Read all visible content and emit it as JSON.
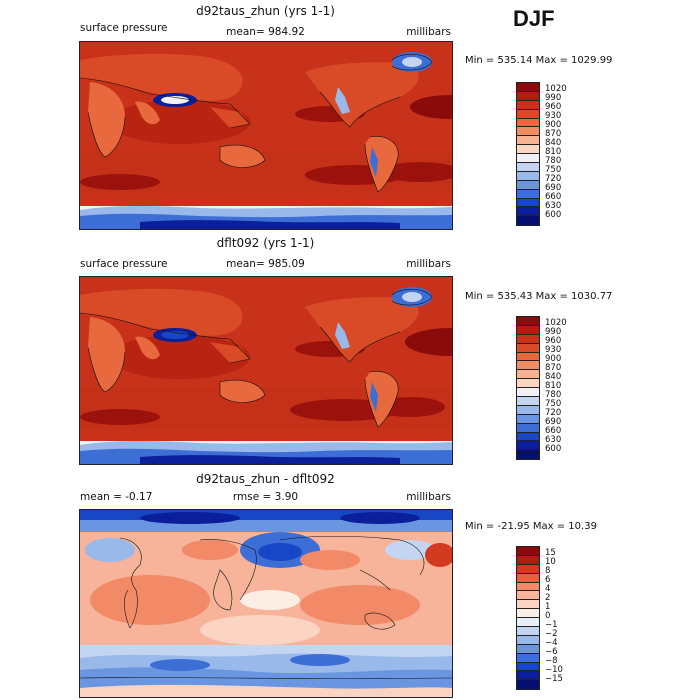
{
  "season": "DJF",
  "panels": [
    {
      "title": "d92taus_zhun (yrs 1-1)",
      "variable": "surface pressure",
      "stat": "mean=  984.92",
      "units": "millibars",
      "minmax": "Min = 535.14 Max = 1029.99",
      "colorbar_labels": [
        "1020",
        "990",
        "960",
        "930",
        "900",
        "870",
        "840",
        "810",
        "780",
        "750",
        "720",
        "690",
        "660",
        "630",
        "600"
      ]
    },
    {
      "title": "dflt092 (yrs 1-1)",
      "variable": "surface pressure",
      "stat": "mean=  985.09",
      "units": "millibars",
      "minmax": "Min = 535.43 Max = 1030.77",
      "colorbar_labels": [
        "1020",
        "990",
        "960",
        "930",
        "900",
        "870",
        "840",
        "810",
        "780",
        "750",
        "720",
        "690",
        "660",
        "630",
        "600"
      ]
    },
    {
      "title": "d92taus_zhun - dflt092",
      "variable": "mean =   -0.17",
      "stat": "rmse =    3.90",
      "units": "millibars",
      "minmax": "Min = -21.95 Max =  10.39",
      "colorbar_labels": [
        "15",
        "10",
        "8",
        "6",
        "4",
        "2",
        "1",
        "0",
        "−1",
        "−2",
        "−4",
        "−6",
        "−8",
        "−10",
        "−15"
      ]
    }
  ],
  "colors": {
    "pressure_scale": [
      "#8b0a0a",
      "#b01c0f",
      "#c8321a",
      "#d94a26",
      "#e8693e",
      "#f28d63",
      "#f7b393",
      "#fbd7c3",
      "#f0f0f5",
      "#c3d5f1",
      "#98b9ea",
      "#6a95e0",
      "#3c6ed6",
      "#1747c4",
      "#0a1f99",
      "#050f6e"
    ],
    "diff_scale": [
      "#8b0a0a",
      "#b01c0f",
      "#d23a1f",
      "#e7603c",
      "#f28a68",
      "#f7b49a",
      "#fbd4c3",
      "#fdeee5",
      "#e8eff9",
      "#c3d5f1",
      "#98b9ea",
      "#6a95e0",
      "#3c6ed6",
      "#1747c4",
      "#0a1f99",
      "#050f6e"
    ]
  }
}
